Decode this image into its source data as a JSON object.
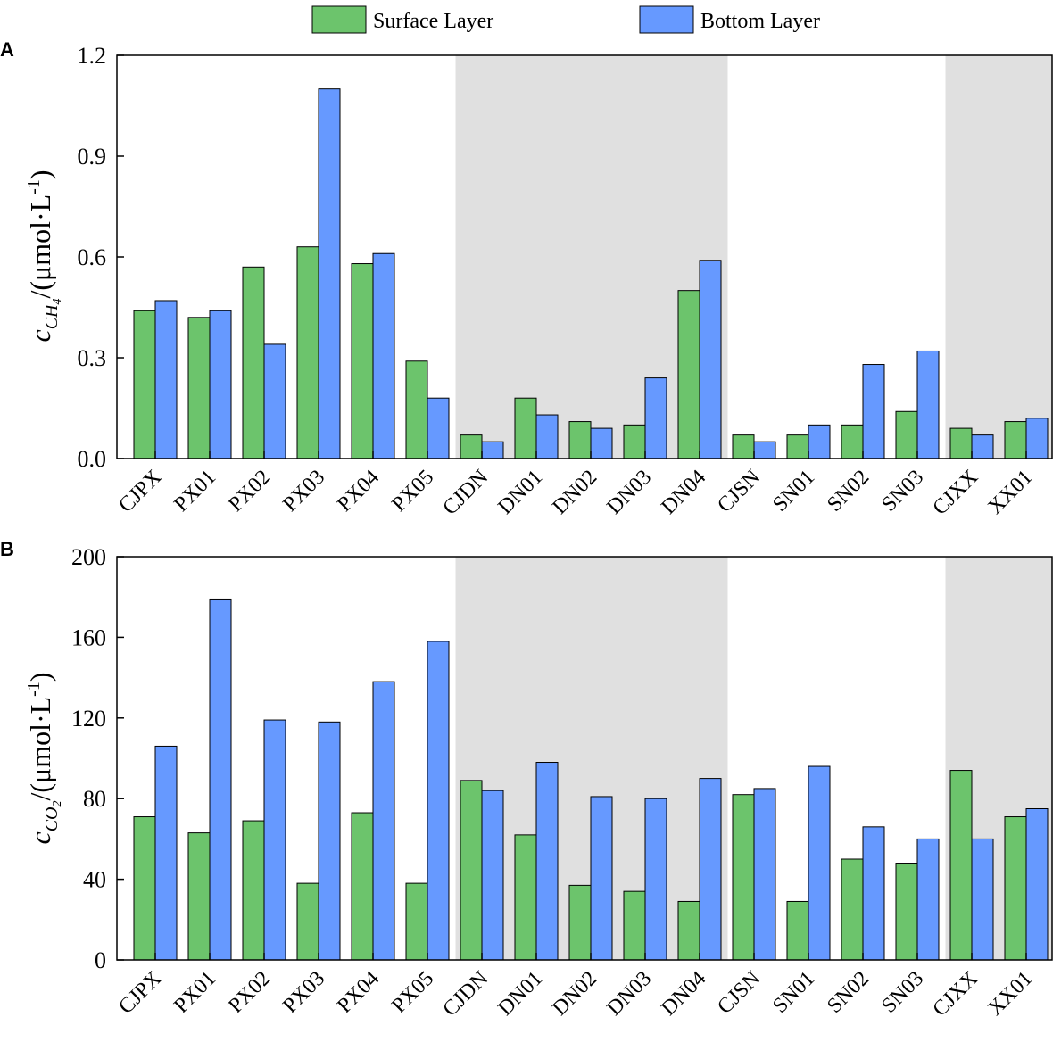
{
  "legend": {
    "surface_label": "Surface Layer",
    "bottom_label": "Bottom Layer"
  },
  "colors": {
    "surface": "#6cc46c",
    "bottom": "#6699ff",
    "shade": "#e0e0e0",
    "axis": "#000000"
  },
  "panels": {
    "a": {
      "letter": "A",
      "ylabel_main": "c",
      "ylabel_sub": "CH",
      "ylabel_subsub": "4",
      "ylabel_unit": "/(μmol·L",
      "ylabel_exp": "-1",
      "ylabel_close": ")"
    },
    "b": {
      "letter": "B",
      "ylabel_main": "c",
      "ylabel_sub": "CO",
      "ylabel_subsub": "2",
      "ylabel_unit": "/(μmol·L",
      "ylabel_exp": "-1",
      "ylabel_close": ")"
    }
  },
  "chart_data": [
    {
      "type": "bar",
      "panel": "A",
      "categories": [
        "CJPX",
        "PX01",
        "PX02",
        "PX03",
        "PX04",
        "PX05",
        "CJDN",
        "DN01",
        "DN02",
        "DN03",
        "DN04",
        "CJSN",
        "SN01",
        "SN02",
        "SN03",
        "CJXX",
        "XX01"
      ],
      "series": [
        {
          "name": "Surface Layer",
          "values": [
            0.44,
            0.42,
            0.57,
            0.63,
            0.58,
            0.29,
            0.07,
            0.18,
            0.11,
            0.1,
            0.5,
            0.07,
            0.07,
            0.1,
            0.14,
            0.09,
            0.11
          ]
        },
        {
          "name": "Bottom Layer",
          "values": [
            0.47,
            0.44,
            0.34,
            1.1,
            0.61,
            0.18,
            0.05,
            0.13,
            0.09,
            0.24,
            0.59,
            0.05,
            0.1,
            0.28,
            0.32,
            0.07,
            0.12
          ]
        }
      ],
      "shaded_ranges": [
        [
          "CJDN",
          "DN04"
        ],
        [
          "CJXX",
          "XX01"
        ]
      ],
      "ylim": [
        0,
        1.2
      ],
      "yticks": [
        "0.0",
        "0.3",
        "0.6",
        "0.9",
        "1.2"
      ],
      "ytick_values": [
        0,
        0.3,
        0.6,
        0.9,
        1.2
      ],
      "ylabel": "cCH4/(μmol·L-1)"
    },
    {
      "type": "bar",
      "panel": "B",
      "categories": [
        "CJPX",
        "PX01",
        "PX02",
        "PX03",
        "PX04",
        "PX05",
        "CJDN",
        "DN01",
        "DN02",
        "DN03",
        "DN04",
        "CJSN",
        "SN01",
        "SN02",
        "SN03",
        "CJXX",
        "XX01"
      ],
      "series": [
        {
          "name": "Surface Layer",
          "values": [
            71,
            63,
            69,
            38,
            73,
            38,
            89,
            62,
            37,
            34,
            29,
            82,
            29,
            50,
            48,
            94,
            71
          ]
        },
        {
          "name": "Bottom Layer",
          "values": [
            106,
            179,
            119,
            118,
            138,
            158,
            84,
            98,
            81,
            80,
            90,
            85,
            96,
            66,
            60,
            60,
            75
          ]
        }
      ],
      "shaded_ranges": [
        [
          "CJDN",
          "DN04"
        ],
        [
          "CJXX",
          "XX01"
        ]
      ],
      "ylim": [
        0,
        200
      ],
      "yticks": [
        "0",
        "40",
        "80",
        "120",
        "160",
        "200"
      ],
      "ytick_values": [
        0,
        40,
        80,
        120,
        160,
        200
      ],
      "ylabel": "cCO2/(μmol·L-1)"
    }
  ]
}
